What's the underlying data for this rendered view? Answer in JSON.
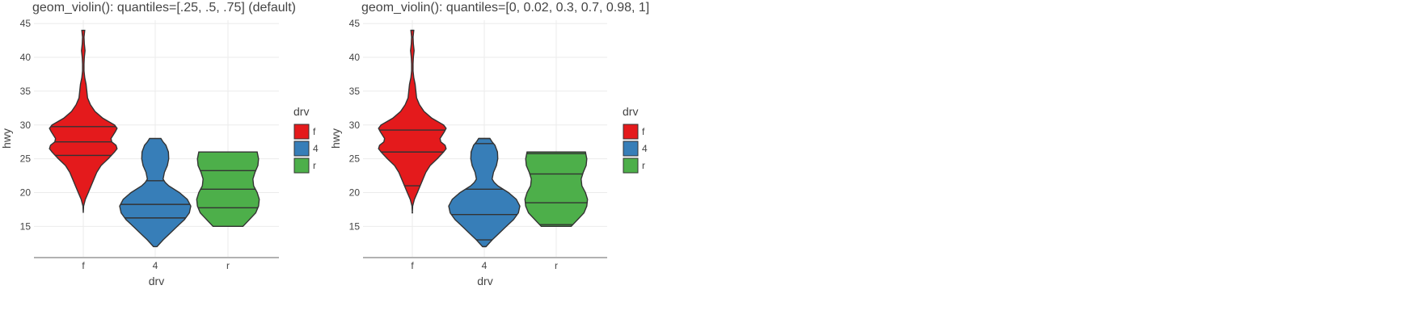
{
  "chart_data": [
    {
      "type": "violin",
      "title": "geom_violin(): quantiles=[.25, .5, .75] (default)",
      "xlabel": "drv",
      "ylabel": "hwy",
      "categories": [
        "f",
        "4",
        "r"
      ],
      "ylim": [
        10.5,
        45.5
      ],
      "yticks": [
        15,
        20,
        25,
        30,
        35,
        40,
        45
      ],
      "grid": true,
      "legend": {
        "title": "drv",
        "placement": "right",
        "entries": [
          "f",
          "4",
          "r"
        ]
      },
      "colors": {
        "f": "#e41a1c",
        "4": "#377eb8",
        "r": "#4daf4a"
      },
      "series": [
        {
          "category": "f",
          "ymin": 17,
          "ymax": 44,
          "density": [
            [
              17,
              0.0
            ],
            [
              18,
              0.01
            ],
            [
              19,
              0.06
            ],
            [
              20,
              0.14
            ],
            [
              21,
              0.22
            ],
            [
              22,
              0.3
            ],
            [
              23,
              0.38
            ],
            [
              24,
              0.5
            ],
            [
              25,
              0.7
            ],
            [
              26,
              0.88
            ],
            [
              26.5,
              0.95
            ],
            [
              27,
              0.92
            ],
            [
              27.5,
              0.8
            ],
            [
              28,
              0.78
            ],
            [
              29,
              0.9
            ],
            [
              29.5,
              0.95
            ],
            [
              30,
              0.88
            ],
            [
              31,
              0.55
            ],
            [
              32,
              0.33
            ],
            [
              33,
              0.2
            ],
            [
              34,
              0.12
            ],
            [
              35,
              0.1
            ],
            [
              36,
              0.08
            ],
            [
              37,
              0.04
            ],
            [
              38,
              0.02
            ],
            [
              39,
              0.02
            ],
            [
              40,
              0.03
            ],
            [
              41,
              0.05
            ],
            [
              42,
              0.03
            ],
            [
              43,
              0.02
            ],
            [
              44,
              0.04
            ]
          ],
          "quantiles": [
            25.5,
            27.5,
            29.75
          ]
        },
        {
          "category": "4",
          "ymin": 12,
          "ymax": 28,
          "density": [
            [
              12,
              0.05
            ],
            [
              13,
              0.22
            ],
            [
              14,
              0.42
            ],
            [
              15,
              0.62
            ],
            [
              16,
              0.82
            ],
            [
              17,
              0.96
            ],
            [
              18,
              1.0
            ],
            [
              19,
              0.9
            ],
            [
              20,
              0.68
            ],
            [
              21,
              0.38
            ],
            [
              21.5,
              0.28
            ],
            [
              22,
              0.22
            ],
            [
              23,
              0.26
            ],
            [
              24,
              0.34
            ],
            [
              25,
              0.38
            ],
            [
              26,
              0.37
            ],
            [
              27,
              0.3
            ],
            [
              27.5,
              0.22
            ],
            [
              28,
              0.16
            ]
          ],
          "quantiles": [
            16.25,
            18.25,
            21.75
          ]
        },
        {
          "category": "r",
          "ymin": 15,
          "ymax": 26,
          "density": [
            [
              15,
              0.42
            ],
            [
              16,
              0.6
            ],
            [
              17,
              0.78
            ],
            [
              18,
              0.86
            ],
            [
              19,
              0.88
            ],
            [
              20,
              0.82
            ],
            [
              21,
              0.72
            ],
            [
              22,
              0.7
            ],
            [
              23,
              0.76
            ],
            [
              24,
              0.84
            ],
            [
              25,
              0.86
            ],
            [
              26,
              0.82
            ]
          ],
          "quantiles": [
            17.75,
            20.5,
            23.25
          ]
        }
      ]
    },
    {
      "type": "violin",
      "title": "geom_violin(): quantiles=[0, 0.02, 0.3, 0.7, 0.98, 1]",
      "xlabel": "drv",
      "ylabel": "hwy",
      "categories": [
        "f",
        "4",
        "r"
      ],
      "ylim": [
        10.5,
        45.5
      ],
      "yticks": [
        15,
        20,
        25,
        30,
        35,
        40,
        45
      ],
      "grid": true,
      "legend": {
        "title": "drv",
        "placement": "right",
        "entries": [
          "f",
          "4",
          "r"
        ]
      },
      "colors": {
        "f": "#e41a1c",
        "4": "#377eb8",
        "r": "#4daf4a"
      },
      "series": [
        {
          "category": "f",
          "ymin": 17,
          "ymax": 44,
          "density": [
            [
              17,
              0.0
            ],
            [
              18,
              0.01
            ],
            [
              19,
              0.06
            ],
            [
              20,
              0.14
            ],
            [
              21,
              0.22
            ],
            [
              22,
              0.3
            ],
            [
              23,
              0.38
            ],
            [
              24,
              0.5
            ],
            [
              25,
              0.7
            ],
            [
              26,
              0.88
            ],
            [
              26.5,
              0.95
            ],
            [
              27,
              0.92
            ],
            [
              27.5,
              0.8
            ],
            [
              28,
              0.78
            ],
            [
              29,
              0.9
            ],
            [
              29.5,
              0.95
            ],
            [
              30,
              0.88
            ],
            [
              31,
              0.55
            ],
            [
              32,
              0.33
            ],
            [
              33,
              0.2
            ],
            [
              34,
              0.12
            ],
            [
              35,
              0.1
            ],
            [
              36,
              0.08
            ],
            [
              37,
              0.04
            ],
            [
              38,
              0.02
            ],
            [
              39,
              0.02
            ],
            [
              40,
              0.03
            ],
            [
              41,
              0.05
            ],
            [
              42,
              0.03
            ],
            [
              43,
              0.02
            ],
            [
              44,
              0.04
            ]
          ],
          "quantiles": [
            17,
            21,
            26,
            29.25,
            43,
            44
          ]
        },
        {
          "category": "4",
          "ymin": 12,
          "ymax": 28,
          "density": [
            [
              12,
              0.05
            ],
            [
              13,
              0.22
            ],
            [
              14,
              0.42
            ],
            [
              15,
              0.62
            ],
            [
              16,
              0.82
            ],
            [
              17,
              0.96
            ],
            [
              18,
              1.0
            ],
            [
              19,
              0.9
            ],
            [
              20,
              0.68
            ],
            [
              21,
              0.38
            ],
            [
              21.5,
              0.28
            ],
            [
              22,
              0.22
            ],
            [
              23,
              0.26
            ],
            [
              24,
              0.34
            ],
            [
              25,
              0.38
            ],
            [
              26,
              0.37
            ],
            [
              27,
              0.3
            ],
            [
              27.5,
              0.22
            ],
            [
              28,
              0.16
            ]
          ],
          "quantiles": [
            12,
            13,
            16.75,
            20.5,
            27.25,
            28
          ]
        },
        {
          "category": "r",
          "ymin": 15,
          "ymax": 26,
          "density": [
            [
              15,
              0.42
            ],
            [
              16,
              0.6
            ],
            [
              17,
              0.78
            ],
            [
              18,
              0.86
            ],
            [
              19,
              0.88
            ],
            [
              20,
              0.82
            ],
            [
              21,
              0.72
            ],
            [
              22,
              0.7
            ],
            [
              23,
              0.76
            ],
            [
              24,
              0.84
            ],
            [
              25,
              0.86
            ],
            [
              26,
              0.82
            ]
          ],
          "quantiles": [
            15,
            15.25,
            18.5,
            22.75,
            25.75,
            26
          ]
        }
      ]
    }
  ]
}
